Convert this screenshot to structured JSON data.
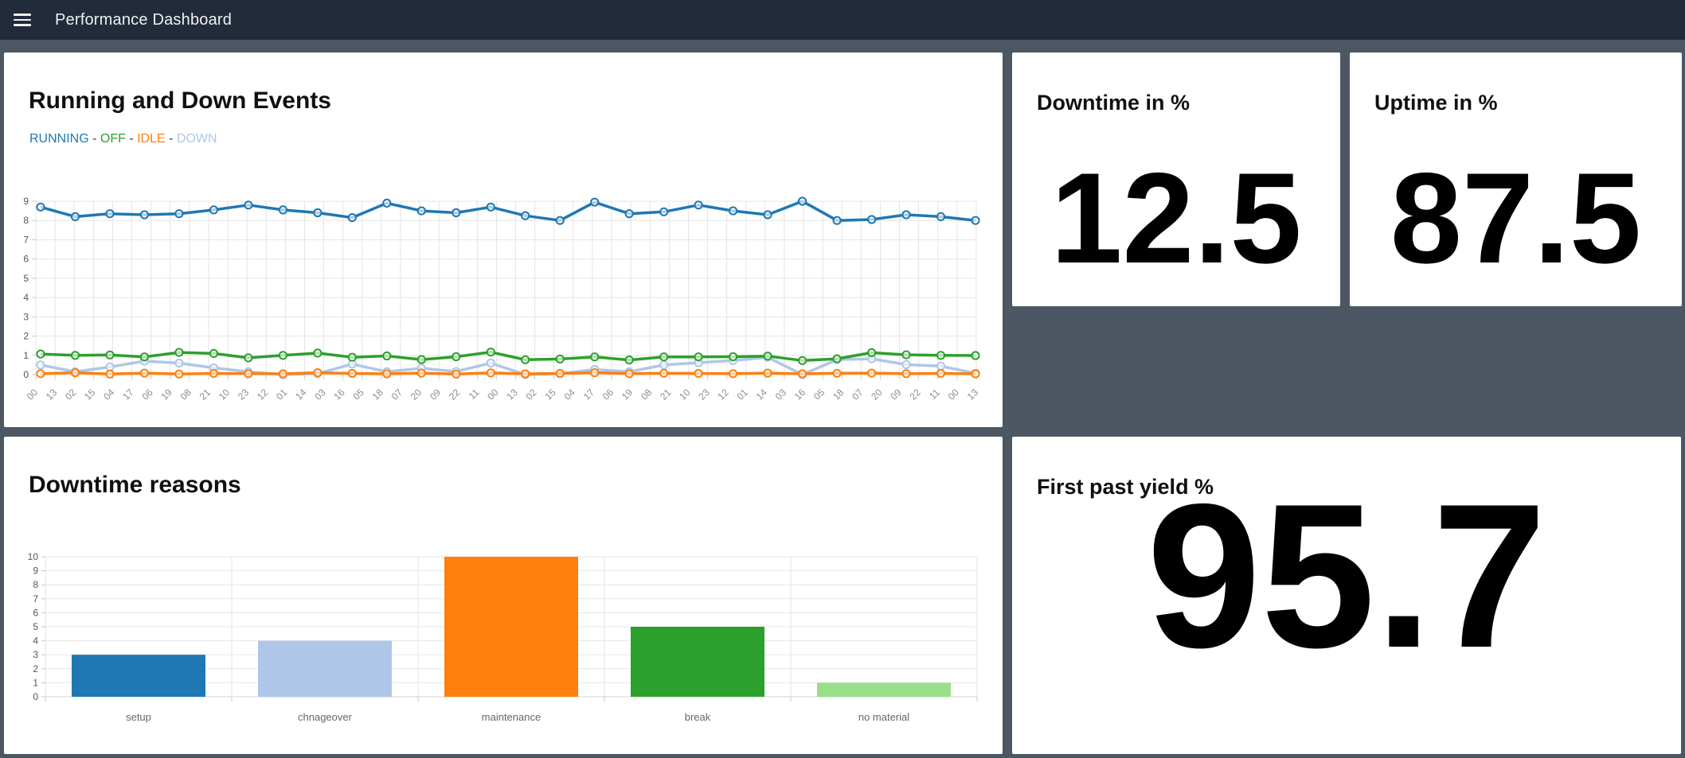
{
  "header": {
    "title": "Performance Dashboard"
  },
  "cards": {
    "running_events": {
      "title": "Running and Down Events",
      "legend_separator": " - "
    },
    "downtime": {
      "title": "Downtime in %",
      "value": "12.5"
    },
    "uptime": {
      "title": "Uptime in %",
      "value": "87.5"
    },
    "downtime_reasons": {
      "title": "Downtime reasons"
    },
    "first_past_yield": {
      "title": "First past yield %",
      "value": "95.7"
    }
  },
  "colors": {
    "topbar": "#222b3a",
    "page_background": "#4d5663",
    "running": "#1f77b4",
    "off": "#2ca02c",
    "idle": "#ff7f0e",
    "down": "#aec7e8"
  },
  "chart_data": [
    {
      "type": "line",
      "title": "Running and Down Events",
      "ylim": [
        0,
        9
      ],
      "y_ticks": [
        0,
        1,
        2,
        3,
        4,
        5,
        6,
        7,
        8,
        9
      ],
      "grid": true,
      "legend_position": "top-left-inline",
      "x_tick_labels": [
        "00",
        "13",
        "02",
        "15",
        "04",
        "17",
        "06",
        "19",
        "08",
        "21",
        "10",
        "23",
        "12",
        "01",
        "14",
        "03",
        "16",
        "05",
        "18",
        "07",
        "20",
        "09",
        "22",
        "11",
        "00",
        "13",
        "02",
        "15",
        "04",
        "17",
        "06",
        "19",
        "08",
        "21",
        "10",
        "23",
        "12",
        "01",
        "14",
        "03",
        "16",
        "05",
        "18",
        "07",
        "20",
        "09",
        "22",
        "11",
        "00",
        "13"
      ],
      "series": [
        {
          "name": "RUNNING",
          "color": "#1f77b4",
          "values": [
            8.7,
            8.2,
            8.35,
            8.3,
            8.35,
            8.55,
            8.8,
            8.55,
            8.4,
            8.15,
            8.9,
            8.5,
            8.4,
            8.7,
            8.25,
            8.0,
            8.95,
            8.35,
            8.45,
            8.8,
            8.5,
            8.3,
            9.0,
            8.0,
            8.05,
            8.3,
            8.2,
            8.0
          ]
        },
        {
          "name": "OFF",
          "color": "#2ca02c",
          "values": [
            1.07,
            1.0,
            1.02,
            0.92,
            1.15,
            1.1,
            0.87,
            1.0,
            1.12,
            0.9,
            0.97,
            0.78,
            0.93,
            1.17,
            0.77,
            0.81,
            0.92,
            0.76,
            0.92,
            0.92,
            0.93,
            0.96,
            0.73,
            0.82,
            1.14,
            1.03,
            1.0,
            0.99
          ]
        },
        {
          "name": "IDLE",
          "color": "#ff7f0e",
          "values": [
            0.05,
            0.1,
            0.03,
            0.08,
            0.03,
            0.06,
            0.05,
            0.04,
            0.1,
            0.06,
            0.04,
            0.08,
            0.03,
            0.09,
            0.04,
            0.06,
            0.1,
            0.05,
            0.07,
            0.06,
            0.05,
            0.08,
            0.04,
            0.07,
            0.08,
            0.05,
            0.06,
            0.04
          ]
        },
        {
          "name": "DOWN",
          "color": "#aec7e8",
          "values": [
            0.5,
            0.15,
            0.4,
            0.7,
            0.6,
            0.35,
            0.15,
            0.0,
            0.05,
            0.55,
            0.15,
            0.33,
            0.16,
            0.6,
            0.0,
            0.05,
            0.27,
            0.15,
            0.5,
            0.62,
            0.73,
            0.9,
            0.0,
            0.78,
            0.82,
            0.52,
            0.44,
            0.07
          ]
        }
      ]
    },
    {
      "type": "bar",
      "title": "Downtime reasons",
      "ylim": [
        0,
        10
      ],
      "y_ticks": [
        0,
        1,
        2,
        3,
        4,
        5,
        6,
        7,
        8,
        9,
        10
      ],
      "grid": true,
      "categories": [
        "setup",
        "chnageover",
        "maintenance",
        "break",
        "no material"
      ],
      "values": [
        3,
        4,
        10,
        5,
        1
      ],
      "colors": [
        "#1f77b4",
        "#aec7e8",
        "#ff7f0e",
        "#2ca02c",
        "#98df8a"
      ]
    }
  ]
}
